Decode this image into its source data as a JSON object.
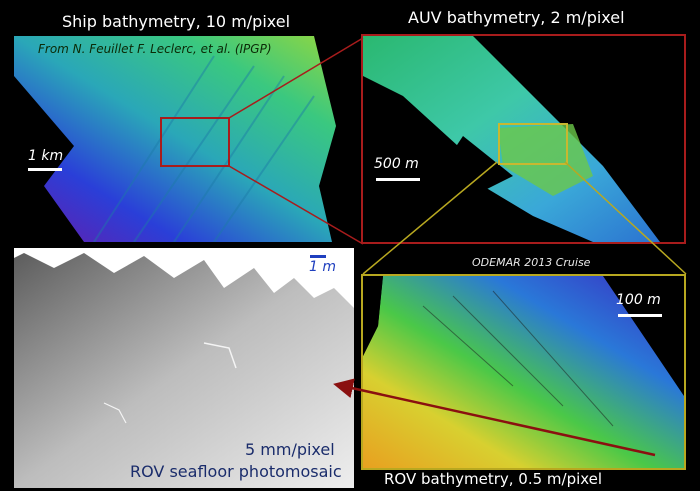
{
  "titles": {
    "ship": "Ship bathymetry, 10 m/pixel",
    "auv": "AUV bathymetry, 2 m/pixel",
    "rov_bathy": "ROV bathymetry, 0.5 m/pixel"
  },
  "credit": "From N. Feuillet F. Leclerc, et al. (IPGP)",
  "scale_labels": {
    "ship": "1 km",
    "auv": "500 m",
    "rov_bathy": "100 m",
    "photomosaic": "1 m"
  },
  "cruise": "ODEMAR 2013 Cruise",
  "photomosaic": {
    "resolution": "5 mm/pixel",
    "caption": "ROV seafloor photomosaic"
  },
  "colors": {
    "ship_frame": "#a81c1c",
    "auv_frame": "#a81c1c",
    "rov_frame": "#b8a820",
    "arrow": "#8a1010",
    "scale_blue": "#1f3fbf"
  }
}
